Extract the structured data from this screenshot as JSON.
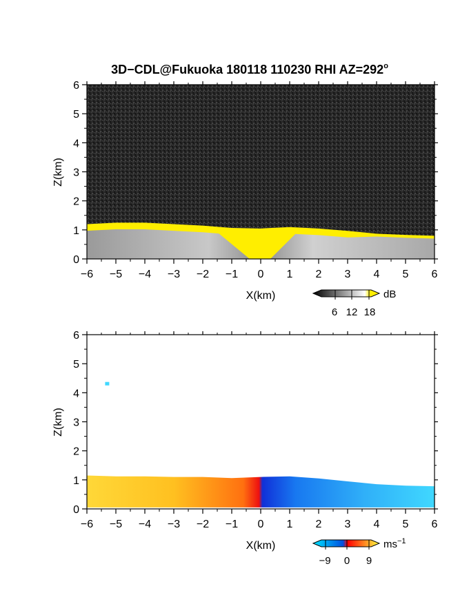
{
  "chart_data": [
    {
      "type": "heatmap",
      "title": "3D−CDL@Fukuoka 180118 110230 RHI AZ=292",
      "title_superscript": "o",
      "xlabel": "X(km)",
      "ylabel": "Z(km)",
      "xlim": [
        -6,
        6
      ],
      "ylim": [
        0,
        6
      ],
      "x_ticks": [
        "−6",
        "−5",
        "−4",
        "−3",
        "−2",
        "−1",
        "0",
        "1",
        "2",
        "3",
        "4",
        "5",
        "6"
      ],
      "y_ticks": [
        "0",
        "1",
        "2",
        "3",
        "4",
        "5",
        "6"
      ],
      "colorbar": {
        "unit": "dB",
        "tick_labels": [
          "6",
          "12",
          "18"
        ],
        "range": [
          0,
          21
        ],
        "colors": [
          "#000000",
          "#ffffff",
          "#ffee00"
        ]
      },
      "layer_top_km": [
        [
          -6,
          1.15
        ],
        [
          -5,
          1.2
        ],
        [
          -4,
          1.2
        ],
        [
          -3,
          1.15
        ],
        [
          -2,
          1.1
        ],
        [
          -1,
          1.02
        ],
        [
          0,
          1.0
        ],
        [
          1,
          1.05
        ],
        [
          2,
          1.0
        ],
        [
          3,
          0.92
        ],
        [
          4,
          0.82
        ],
        [
          5,
          0.78
        ],
        [
          6,
          0.75
        ]
      ]
    },
    {
      "type": "heatmap",
      "xlabel": "X(km)",
      "ylabel": "Z(km)",
      "xlim": [
        -6,
        6
      ],
      "ylim": [
        0,
        6
      ],
      "x_ticks": [
        "−6",
        "−5",
        "−4",
        "−3",
        "−2",
        "−1",
        "0",
        "1",
        "2",
        "3",
        "4",
        "5",
        "6"
      ],
      "y_ticks": [
        "0",
        "1",
        "2",
        "3",
        "4",
        "5",
        "6"
      ],
      "colorbar": {
        "unit": "ms",
        "unit_superscript": "−1",
        "tick_labels": [
          "−9",
          "0",
          "9"
        ],
        "range": [
          -12,
          12
        ],
        "colors": [
          "#00e5ff",
          "#0050e0",
          "#ff0000",
          "#ffff40"
        ]
      },
      "layer_top_km": [
        [
          -6,
          1.15
        ],
        [
          -5,
          1.12
        ],
        [
          -4,
          1.12
        ],
        [
          -3,
          1.1
        ],
        [
          -2,
          1.1
        ],
        [
          -1,
          1.06
        ],
        [
          0,
          1.1
        ],
        [
          1,
          1.12
        ],
        [
          2,
          1.05
        ],
        [
          3,
          0.95
        ],
        [
          4,
          0.85
        ],
        [
          5,
          0.8
        ],
        [
          6,
          0.78
        ]
      ],
      "isolated_echo": {
        "x_km": -5.3,
        "z_km": 4.3
      }
    }
  ]
}
